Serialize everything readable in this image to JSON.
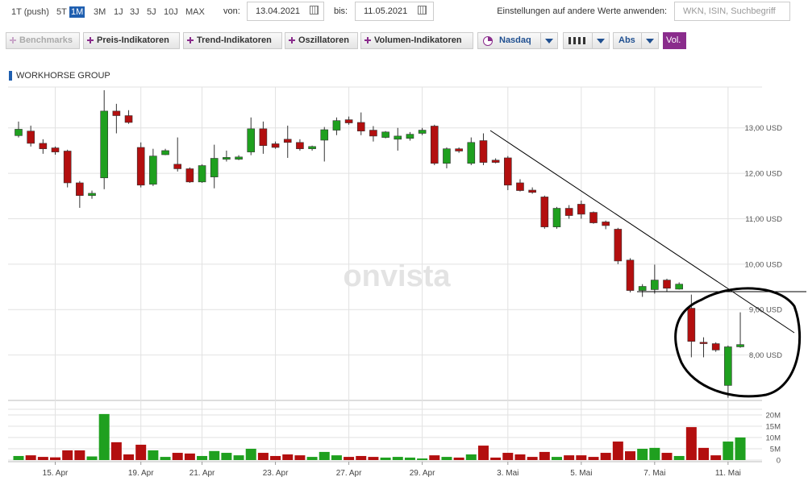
{
  "toolbar": {
    "ranges": [
      "1T (push)",
      "5T",
      "1M",
      "3M",
      "1J",
      "3J",
      "5J",
      "10J",
      "MAX"
    ],
    "selected_range": "1M",
    "from_label": "von:",
    "from_date": "13.04.2021",
    "to_label": "bis:",
    "to_date": "11.05.2021",
    "apply_label": "Einstellungen auf andere Werte anwenden:",
    "search_placeholder": "WKN, ISIN, Suchbegriff",
    "buttons": [
      "Benchmarks",
      "Preis-Indikatoren",
      "Trend-Indikatoren",
      "Oszillatoren",
      "Volumen-Indikatoren"
    ],
    "benchmark": "Nasdaq",
    "scale": "Abs",
    "volume_toggle": "Vol."
  },
  "watermark": "onvista",
  "chart_data": {
    "type": "candlestick",
    "title": "WORKHORSE GROUP",
    "up_color": "#1fa01f",
    "down_color": "#b30f0f",
    "grid": true,
    "categories": [
      null,
      null,
      null,
      "15. Apr",
      null,
      null,
      null,
      null,
      null,
      null,
      "19. Apr",
      null,
      null,
      null,
      null,
      "21. Apr",
      null,
      null,
      null,
      null,
      null,
      "23. Apr",
      null,
      null,
      null,
      null,
      null,
      "27. Apr",
      null,
      null,
      null,
      null,
      null,
      "29. Apr",
      null,
      null,
      null,
      null,
      null,
      null,
      "3. Mai",
      null,
      null,
      null,
      null,
      null,
      "5. Mai",
      null,
      null,
      null,
      null,
      null,
      "7. Mai",
      null,
      null,
      null,
      null,
      null,
      "11. Mai",
      null
    ],
    "open": [
      12.83,
      12.93,
      12.66,
      12.56,
      12.49,
      11.79,
      11.51,
      11.9,
      13.37,
      13.27,
      12.57,
      11.76,
      12.41,
      12.2,
      12.1,
      11.81,
      11.92,
      12.31,
      12.31,
      12.47,
      12.98,
      12.65,
      12.75,
      12.68,
      12.54,
      12.73,
      12.95,
      13.18,
      13.12,
      12.95,
      12.79,
      12.75,
      12.77,
      12.88,
      13.04,
      12.22,
      12.54,
      12.22,
      12.72,
      12.29,
      12.34,
      11.79,
      11.63,
      11.48,
      10.82,
      11.23,
      11.32,
      11.14,
      10.93,
      10.77,
      10.09,
      9.42,
      9.44,
      9.65,
      9.45,
      9.03,
      8.28,
      8.25,
      7.33,
      8.18
    ],
    "high": [
      13.14,
      13.05,
      12.75,
      12.59,
      12.52,
      11.83,
      11.62,
      13.83,
      13.53,
      13.39,
      12.68,
      12.54,
      12.54,
      12.79,
      12.13,
      12.2,
      12.63,
      12.5,
      12.4,
      13.23,
      13.14,
      12.7,
      13.05,
      12.75,
      12.61,
      13.02,
      13.23,
      13.25,
      13.34,
      13.04,
      12.93,
      13.0,
      12.91,
      13.0,
      13.07,
      12.57,
      12.57,
      12.79,
      12.88,
      12.33,
      12.38,
      11.87,
      11.69,
      11.51,
      11.26,
      11.3,
      11.4,
      11.16,
      10.96,
      10.8,
      10.13,
      9.56,
      9.99,
      9.68,
      9.6,
      9.33,
      8.39,
      8.28,
      8.21,
      8.94
    ],
    "low": [
      12.79,
      12.59,
      12.43,
      12.41,
      11.69,
      11.24,
      11.44,
      11.65,
      12.88,
      13.09,
      11.69,
      11.72,
      12.4,
      12.04,
      11.79,
      11.79,
      11.67,
      12.26,
      12.29,
      12.4,
      12.43,
      12.54,
      12.34,
      12.5,
      12.5,
      12.26,
      12.84,
      13.07,
      12.84,
      12.7,
      12.77,
      12.5,
      12.72,
      12.84,
      12.18,
      12.11,
      12.45,
      12.18,
      12.18,
      12.22,
      11.63,
      11.6,
      11.55,
      10.78,
      10.78,
      11.0,
      11.0,
      10.89,
      10.77,
      10.0,
      9.38,
      9.28,
      9.35,
      9.4,
      9.44,
      7.95,
      7.95,
      8.07,
      7.06,
      8.16
    ],
    "close": [
      12.97,
      12.66,
      12.54,
      12.47,
      11.79,
      11.51,
      11.56,
      13.37,
      13.27,
      13.12,
      11.74,
      12.38,
      12.5,
      12.1,
      11.81,
      12.17,
      12.33,
      12.35,
      12.36,
      12.98,
      12.61,
      12.57,
      12.68,
      12.54,
      12.59,
      12.96,
      13.16,
      13.11,
      12.93,
      12.82,
      12.91,
      12.82,
      12.86,
      12.95,
      12.22,
      12.54,
      12.49,
      12.68,
      12.24,
      12.24,
      11.74,
      11.62,
      11.58,
      10.82,
      11.23,
      11.07,
      11.1,
      10.91,
      10.85,
      10.07,
      9.42,
      9.51,
      9.65,
      9.47,
      9.56,
      8.3,
      8.25,
      8.11,
      8.18,
      8.23
    ],
    "ylim": [
      7.0,
      13.9
    ],
    "yticks": [
      {
        "value": 8,
        "label": "8,00 USD"
      },
      {
        "value": 9,
        "label": "9,00 USD"
      },
      {
        "value": 10,
        "label": "10,00 USD"
      },
      {
        "value": 11,
        "label": "11,00 USD"
      },
      {
        "value": 12,
        "label": "12,00 USD"
      },
      {
        "value": 13,
        "label": "13,00 USD"
      }
    ],
    "volume": {
      "values": [
        1.8,
        2.1,
        1.4,
        1.2,
        4.3,
        4.3,
        1.6,
        20.4,
        7.9,
        2.5,
        6.8,
        4.3,
        1.4,
        3.2,
        2.9,
        1.8,
        4.0,
        3.2,
        2.1,
        5.0,
        3.2,
        1.8,
        2.5,
        2.1,
        1.4,
        3.6,
        2.1,
        1.4,
        1.8,
        1.4,
        1.1,
        1.4,
        1.1,
        0.7,
        2.1,
        1.4,
        1.1,
        2.5,
        6.4,
        1.1,
        3.2,
        2.5,
        1.4,
        3.6,
        1.4,
        2.1,
        2.1,
        1.4,
        3.2,
        8.2,
        3.9,
        5.0,
        5.4,
        3.2,
        1.8,
        14.6,
        5.4,
        2.1,
        8.2,
        10.0
      ],
      "ylim": [
        0,
        22.5
      ],
      "yticks": [
        0,
        {
          "value": 5,
          "label": "5M"
        },
        {
          "value": 10,
          "label": "10M"
        },
        {
          "value": 15,
          "label": "15M"
        },
        {
          "value": 20,
          "label": "20M"
        }
      ]
    }
  }
}
